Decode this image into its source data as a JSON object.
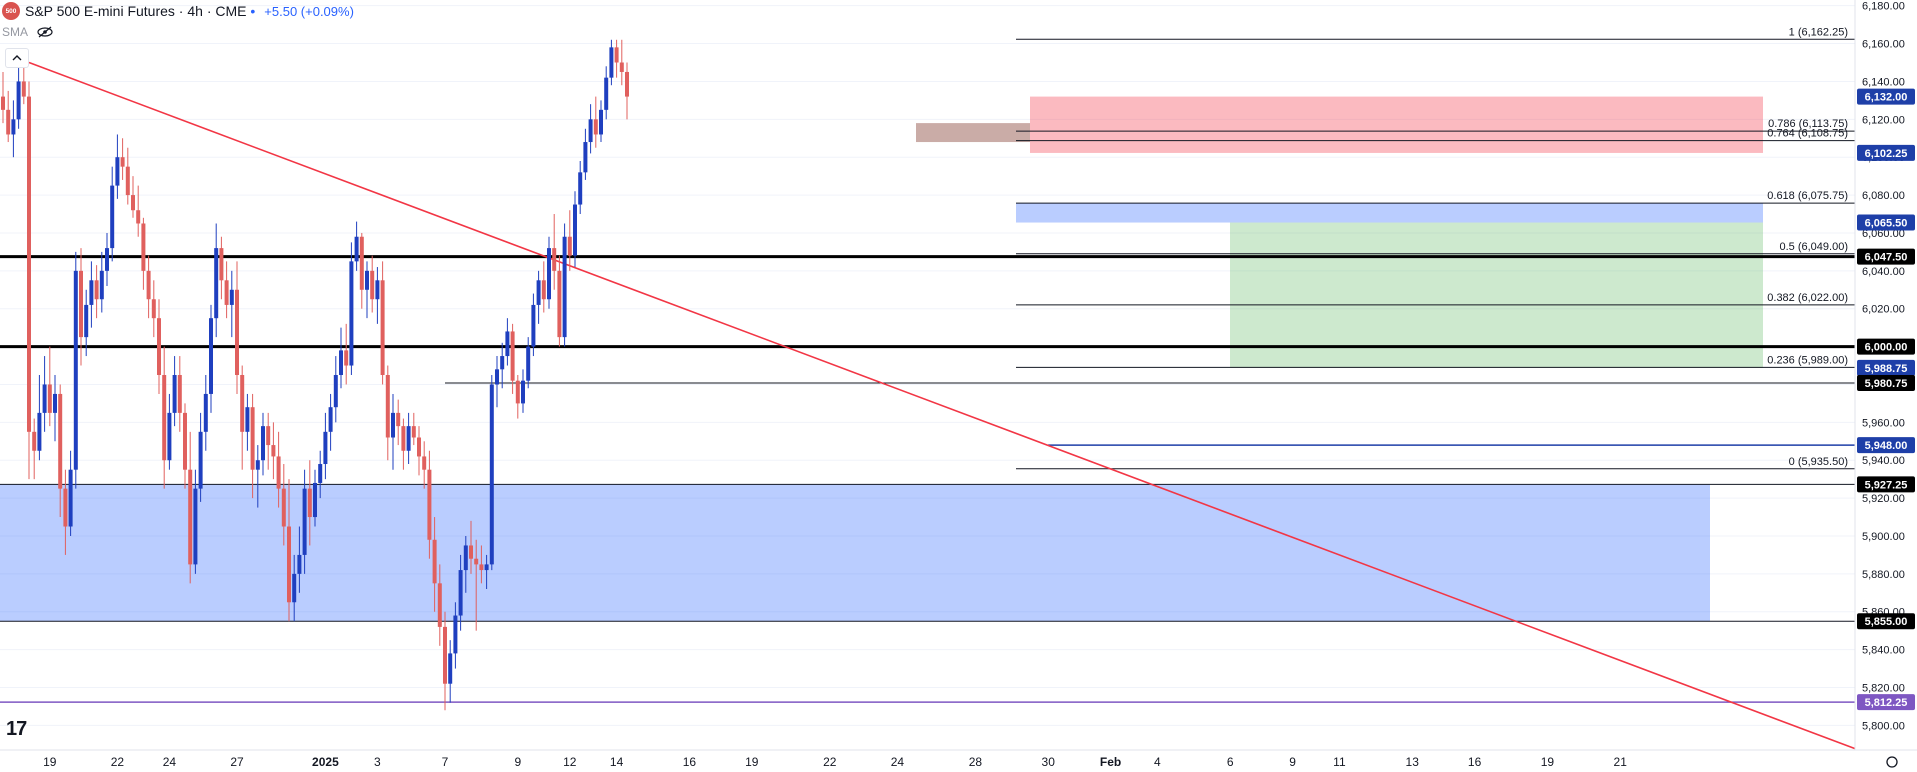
{
  "header": {
    "logo_text": "500",
    "title": "S&P 500 E-mini Futures · 4h · CME",
    "change": "+5.50 (+0.09%)",
    "indicator": "SMA"
  },
  "colors": {
    "up": "#1f3fbf",
    "down": "#e0605e",
    "trendline": "#f23645",
    "grid": "#f0f3fa",
    "support_zone": "rgba(41,98,255,0.32)",
    "resistance_zone": "rgba(242,54,69,0.34)",
    "target_zone": "rgba(76,175,80,0.28)",
    "price_tag_blue": "#1e3fa8",
    "price_tag_black": "#000000",
    "price_tag_purple": "#7e57c2"
  },
  "chart_data": {
    "type": "candlestick",
    "title": "S&P 500 E-mini Futures · 4h · CME",
    "ylim": [
      5787,
      6183
    ],
    "y_ticks": [
      5800,
      5820,
      5840,
      5860,
      5880,
      5900,
      5920,
      5940,
      5960,
      5980,
      6000,
      6020,
      6040,
      6060,
      6080,
      6100,
      6120,
      6140,
      6160,
      6180
    ],
    "y_tick_labels": [
      "5,800.00",
      "5,820.00",
      "5,840.00",
      "5,860.00",
      "5,880.00",
      "5,900.00",
      "5,920.00",
      "5,940.00",
      "5,960.00",
      "5,980.00",
      "6,000.00",
      "6,020.00",
      "6,040.00",
      "6,060.00",
      "6,080.00",
      "6,100.00",
      "6,120.00",
      "6,140.00",
      "6,160.00",
      "6,180.00"
    ],
    "x_labels": [
      {
        "label": "19",
        "bar": 9
      },
      {
        "label": "22",
        "bar": 22
      },
      {
        "label": "24",
        "bar": 32
      },
      {
        "label": "27",
        "bar": 45
      },
      {
        "label": "2025",
        "bar": 62,
        "bold": true
      },
      {
        "label": "3",
        "bar": 72
      },
      {
        "label": "7",
        "bar": 85
      },
      {
        "label": "9",
        "bar": 99
      },
      {
        "label": "12",
        "bar": 109
      },
      {
        "label": "14",
        "bar": 118
      },
      {
        "label": "16",
        "bar": 132
      },
      {
        "label": "19",
        "bar": 144
      },
      {
        "label": "22",
        "bar": 159
      },
      {
        "label": "24",
        "bar": 172
      },
      {
        "label": "28",
        "bar": 187
      },
      {
        "label": "30",
        "bar": 201
      },
      {
        "label": "Feb",
        "bar": 213,
        "bold": true
      },
      {
        "label": "4",
        "bar": 222
      },
      {
        "label": "6",
        "bar": 236
      },
      {
        "label": "9",
        "bar": 248
      },
      {
        "label": "11",
        "bar": 257
      },
      {
        "label": "13",
        "bar": 271
      },
      {
        "label": "16",
        "bar": 283
      },
      {
        "label": "19",
        "bar": 297
      },
      {
        "label": "21",
        "bar": 311
      }
    ],
    "candles": [
      [
        6132,
        6145,
        6118,
        6125
      ],
      [
        6125,
        6135,
        6108,
        6112
      ],
      [
        6112,
        6130,
        6100,
        6120
      ],
      [
        6120,
        6148,
        6115,
        6140
      ],
      [
        6140,
        6150,
        6128,
        6132
      ],
      [
        6132,
        6140,
        5930,
        5955
      ],
      [
        5955,
        5962,
        5930,
        5945
      ],
      [
        5945,
        5985,
        5940,
        5965
      ],
      [
        5965,
        5995,
        5955,
        5980
      ],
      [
        5980,
        6000,
        5958,
        5965
      ],
      [
        5965,
        5985,
        5950,
        5975
      ],
      [
        5975,
        5980,
        5910,
        5925
      ],
      [
        5925,
        5935,
        5890,
        5905
      ],
      [
        5905,
        5945,
        5900,
        5935
      ],
      [
        5935,
        6050,
        5925,
        6040
      ],
      [
        6040,
        6052,
        5990,
        6005
      ],
      [
        6005,
        6030,
        5995,
        6022
      ],
      [
        6022,
        6045,
        6010,
        6035
      ],
      [
        6035,
        6043,
        6015,
        6025
      ],
      [
        6025,
        6050,
        6018,
        6040
      ],
      [
        6040,
        6060,
        6032,
        6052
      ],
      [
        6052,
        6095,
        6045,
        6085
      ],
      [
        6085,
        6112,
        6078,
        6100
      ],
      [
        6100,
        6110,
        6088,
        6095
      ],
      [
        6095,
        6105,
        6075,
        6080
      ],
      [
        6080,
        6090,
        6068,
        6072
      ],
      [
        6072,
        6085,
        6058,
        6065
      ],
      [
        6065,
        6068,
        6030,
        6040
      ],
      [
        6040,
        6048,
        6015,
        6025
      ],
      [
        6025,
        6035,
        6005,
        6015
      ],
      [
        6015,
        6025,
        5975,
        5985
      ],
      [
        5985,
        6000,
        5925,
        5940
      ],
      [
        5940,
        5975,
        5935,
        5965
      ],
      [
        5965,
        5995,
        5958,
        5985
      ],
      [
        5985,
        5995,
        5955,
        5965
      ],
      [
        5965,
        5970,
        5925,
        5935
      ],
      [
        5935,
        5955,
        5875,
        5885
      ],
      [
        5885,
        5935,
        5880,
        5925
      ],
      [
        5925,
        5965,
        5918,
        5955
      ],
      [
        5955,
        5985,
        5945,
        5975
      ],
      [
        5975,
        6022,
        5965,
        6015
      ],
      [
        6015,
        6065,
        6005,
        6052
      ],
      [
        6052,
        6058,
        6025,
        6035
      ],
      [
        6035,
        6045,
        6015,
        6022
      ],
      [
        6022,
        6040,
        6005,
        6030
      ],
      [
        6030,
        6045,
        5975,
        5985
      ],
      [
        5985,
        5990,
        5935,
        5955
      ],
      [
        5955,
        5975,
        5945,
        5968
      ],
      [
        5968,
        5975,
        5920,
        5935
      ],
      [
        5935,
        5948,
        5915,
        5940
      ],
      [
        5940,
        5965,
        5932,
        5958
      ],
      [
        5958,
        5965,
        5935,
        5948
      ],
      [
        5948,
        5960,
        5930,
        5942
      ],
      [
        5942,
        5955,
        5915,
        5925
      ],
      [
        5925,
        5938,
        5895,
        5905
      ],
      [
        5905,
        5930,
        5855,
        5865
      ],
      [
        5865,
        5890,
        5855,
        5880
      ],
      [
        5880,
        5905,
        5870,
        5890
      ],
      [
        5890,
        5935,
        5880,
        5925
      ],
      [
        5925,
        5940,
        5895,
        5910
      ],
      [
        5910,
        5935,
        5905,
        5928
      ],
      [
        5928,
        5945,
        5920,
        5938
      ],
      [
        5938,
        5965,
        5930,
        5955
      ],
      [
        5955,
        5975,
        5945,
        5968
      ],
      [
        5968,
        5995,
        5960,
        5985
      ],
      [
        5985,
        6010,
        5978,
        5998
      ],
      [
        5998,
        6012,
        5980,
        5990
      ],
      [
        5990,
        6055,
        5985,
        6045
      ],
      [
        6045,
        6066,
        6040,
        6058
      ],
      [
        6058,
        6060,
        6020,
        6030
      ],
      [
        6030,
        6045,
        6015,
        6040
      ],
      [
        6040,
        6048,
        6018,
        6025
      ],
      [
        6025,
        6042,
        6012,
        6035
      ],
      [
        6035,
        6045,
        5980,
        5985
      ],
      [
        5985,
        5990,
        5940,
        5952
      ],
      [
        5952,
        5975,
        5935,
        5965
      ],
      [
        5965,
        5972,
        5948,
        5958
      ],
      [
        5958,
        5962,
        5935,
        5945
      ],
      [
        5945,
        5965,
        5938,
        5958
      ],
      [
        5958,
        5965,
        5948,
        5952
      ],
      [
        5952,
        5958,
        5932,
        5942
      ],
      [
        5942,
        5950,
        5925,
        5935
      ],
      [
        5935,
        5945,
        5888,
        5898
      ],
      [
        5898,
        5910,
        5860,
        5875
      ],
      [
        5875,
        5885,
        5842,
        5852
      ],
      [
        5852,
        5860,
        5808,
        5822
      ],
      [
        5822,
        5845,
        5812,
        5838
      ],
      [
        5838,
        5865,
        5830,
        5858
      ],
      [
        5858,
        5890,
        5850,
        5882
      ],
      [
        5882,
        5900,
        5870,
        5895
      ],
      [
        5895,
        5908,
        5880,
        5888
      ],
      [
        5888,
        5898,
        5850,
        5885
      ],
      [
        5885,
        5895,
        5875,
        5882
      ],
      [
        5882,
        5890,
        5872,
        5885
      ],
      [
        5885,
        5985,
        5882,
        5980
      ],
      [
        5980,
        5995,
        5968,
        5988
      ],
      [
        5988,
        6002,
        5978,
        5995
      ],
      [
        5995,
        6015,
        5990,
        6008
      ],
      [
        6008,
        6012,
        5975,
        5982
      ],
      [
        5982,
        5985,
        5962,
        5970
      ],
      [
        5970,
        5988,
        5965,
        5982
      ],
      [
        5982,
        6005,
        5978,
        6000
      ],
      [
        6000,
        6028,
        5995,
        6022
      ],
      [
        6022,
        6040,
        6012,
        6035
      ],
      [
        6035,
        6045,
        6018,
        6025
      ],
      [
        6025,
        6058,
        6020,
        6052
      ],
      [
        6052,
        6070,
        6030,
        6040
      ],
      [
        6040,
        6048,
        6000,
        6005
      ],
      [
        6005,
        6065,
        6000,
        6058
      ],
      [
        6058,
        6072,
        6040,
        6048
      ],
      [
        6048,
        6082,
        6042,
        6075
      ],
      [
        6075,
        6098,
        6070,
        6092
      ],
      [
        6092,
        6115,
        6088,
        6108
      ],
      [
        6108,
        6128,
        6102,
        6120
      ],
      [
        6120,
        6132,
        6105,
        6112
      ],
      [
        6112,
        6130,
        6108,
        6125
      ],
      [
        6125,
        6148,
        6120,
        6142
      ],
      [
        6142,
        6162,
        6138,
        6158
      ],
      [
        6158,
        6162,
        6142,
        6150
      ],
      [
        6150,
        6162,
        6138,
        6145
      ],
      [
        6145,
        6150,
        6120,
        6132
      ]
    ],
    "h_lines": [
      {
        "price": 6047.5,
        "label": "6,047.50",
        "style": "bold"
      },
      {
        "price": 6000.0,
        "label": "6,000.00",
        "style": "bold"
      },
      {
        "price": 5980.75,
        "label": "5,980.75",
        "style": "thin"
      },
      {
        "price": 5927.25,
        "label": "5,927.25",
        "style": "thin"
      },
      {
        "price": 5855.0,
        "label": "5,855.00",
        "style": "thin"
      },
      {
        "price": 5812.25,
        "label": "5,812.25",
        "style": "purple"
      },
      {
        "price": 5948.0,
        "label": "5,948.00",
        "style": "blue"
      }
    ],
    "zones": [
      {
        "name": "support",
        "from": 5855.0,
        "to": 5927.25
      },
      {
        "name": "resistance",
        "from": 6102.25,
        "to": 6132.0
      },
      {
        "name": "fib-band",
        "from": 6065.5,
        "to": 6075.75
      },
      {
        "name": "target",
        "from": 5988.75,
        "to": 6065.5
      }
    ],
    "fib_levels": [
      {
        "label": "1 (6,162.25)",
        "price": 6162.25
      },
      {
        "label": "0.786 (6,113.75)",
        "price": 6113.75
      },
      {
        "label": "0.764 (6,108.75)",
        "price": 6108.75
      },
      {
        "label": "0.618 (6,075.75)",
        "price": 6075.75
      },
      {
        "label": "0.5 (6,049.00)",
        "price": 6049.0
      },
      {
        "label": "0.382 (6,022.00)",
        "price": 6022.0
      },
      {
        "label": "0.236 (5,989.00)",
        "price": 5989.0
      },
      {
        "label": "0 (5,935.50)",
        "price": 5935.5
      }
    ],
    "price_tags": [
      {
        "label": "6,132.00",
        "price": 6132.0,
        "kind": "blue"
      },
      {
        "label": "6,102.25",
        "price": 6102.25,
        "kind": "blue"
      },
      {
        "label": "6,065.50",
        "price": 6065.5,
        "kind": "blue"
      },
      {
        "label": "6,047.50",
        "price": 6047.5,
        "kind": "black"
      },
      {
        "label": "6,000.00",
        "price": 6000.0,
        "kind": "black"
      },
      {
        "label": "5,988.75",
        "price": 5988.75,
        "kind": "blue"
      },
      {
        "label": "5,980.75",
        "price": 5980.75,
        "kind": "black"
      },
      {
        "label": "5,948.00",
        "price": 5948.0,
        "kind": "blue"
      },
      {
        "label": "5,927.25",
        "price": 5927.25,
        "kind": "black"
      },
      {
        "label": "5,855.00",
        "price": 5855.0,
        "kind": "black"
      },
      {
        "label": "5,812.25",
        "price": 5812.25,
        "kind": "purple"
      }
    ],
    "trendline": {
      "from": {
        "bar": 5,
        "price": 6150
      },
      "to": {
        "bar": 320,
        "price": 5825
      }
    }
  }
}
